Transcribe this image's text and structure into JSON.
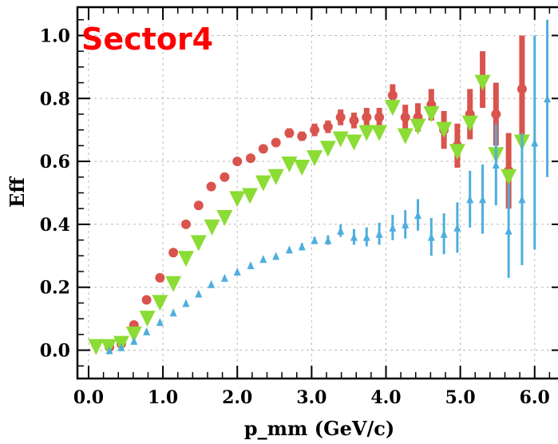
{
  "chart_data": {
    "type": "scatter",
    "title": "Sector4",
    "title_color": "#ff0000",
    "xlabel": "p_mm (GeV/c)",
    "ylabel": "Eff",
    "xlim": [
      -0.15,
      6.4
    ],
    "ylim": [
      -0.09,
      1.09
    ],
    "grid": true,
    "x_ticks": [
      {
        "value": 0.0,
        "label": "0.0"
      },
      {
        "value": 1.0,
        "label": "1.0"
      },
      {
        "value": 2.0,
        "label": "2.0"
      },
      {
        "value": 3.0,
        "label": "3.0"
      },
      {
        "value": 4.0,
        "label": "4.0"
      },
      {
        "value": 5.0,
        "label": "5.0"
      },
      {
        "value": 6.0,
        "label": "6.0"
      }
    ],
    "y_ticks": [
      {
        "value": 0.0,
        "label": "0.0"
      },
      {
        "value": 0.2,
        "label": "0.2"
      },
      {
        "value": 0.4,
        "label": "0.4"
      },
      {
        "value": 0.6,
        "label": "0.6"
      },
      {
        "value": 0.8,
        "label": "0.8"
      },
      {
        "value": 1.0,
        "label": "1.0"
      }
    ],
    "series": [
      {
        "marker": "circle",
        "color": "#d9544d",
        "points": [
          {
            "x": 0.28,
            "y": 0.01,
            "err": 0.01
          },
          {
            "x": 0.44,
            "y": 0.02,
            "err": 0.01
          },
          {
            "x": 0.61,
            "y": 0.08,
            "err": 0.01
          },
          {
            "x": 0.78,
            "y": 0.16,
            "err": 0.01
          },
          {
            "x": 0.96,
            "y": 0.23,
            "err": 0.01
          },
          {
            "x": 1.14,
            "y": 0.31,
            "err": 0.01
          },
          {
            "x": 1.31,
            "y": 0.4,
            "err": 0.01
          },
          {
            "x": 1.48,
            "y": 0.46,
            "err": 0.01
          },
          {
            "x": 1.65,
            "y": 0.52,
            "err": 0.01
          },
          {
            "x": 1.83,
            "y": 0.55,
            "err": 0.01
          },
          {
            "x": 2.0,
            "y": 0.6,
            "err": 0.01
          },
          {
            "x": 2.18,
            "y": 0.61,
            "err": 0.01
          },
          {
            "x": 2.35,
            "y": 0.64,
            "err": 0.01
          },
          {
            "x": 2.52,
            "y": 0.66,
            "err": 0.01
          },
          {
            "x": 2.7,
            "y": 0.69,
            "err": 0.015
          },
          {
            "x": 2.87,
            "y": 0.68,
            "err": 0.015
          },
          {
            "x": 3.04,
            "y": 0.7,
            "err": 0.02
          },
          {
            "x": 3.22,
            "y": 0.71,
            "err": 0.02
          },
          {
            "x": 3.39,
            "y": 0.74,
            "err": 0.025
          },
          {
            "x": 3.57,
            "y": 0.73,
            "err": 0.025
          },
          {
            "x": 3.74,
            "y": 0.74,
            "err": 0.03
          },
          {
            "x": 3.91,
            "y": 0.74,
            "err": 0.03
          },
          {
            "x": 4.09,
            "y": 0.81,
            "err": 0.035
          },
          {
            "x": 4.26,
            "y": 0.74,
            "err": 0.04
          },
          {
            "x": 4.43,
            "y": 0.74,
            "err": 0.045
          },
          {
            "x": 4.61,
            "y": 0.78,
            "err": 0.05
          },
          {
            "x": 4.78,
            "y": 0.7,
            "err": 0.06
          },
          {
            "x": 4.96,
            "y": 0.65,
            "err": 0.07
          },
          {
            "x": 5.13,
            "y": 0.75,
            "err": 0.08
          },
          {
            "x": 5.3,
            "y": 0.86,
            "err": 0.09
          },
          {
            "x": 5.48,
            "y": 0.75,
            "err": 0.1
          },
          {
            "x": 5.65,
            "y": 0.57,
            "err": 0.12
          },
          {
            "x": 5.83,
            "y": 0.83,
            "err": 0.17
          }
        ]
      },
      {
        "marker": "triangle-down",
        "color": "#8bdc34",
        "points": [
          {
            "x": 0.1,
            "y": 0.01,
            "err": 0.0
          },
          {
            "x": 0.27,
            "y": 0.01,
            "err": 0.0
          },
          {
            "x": 0.44,
            "y": 0.02,
            "err": 0.0
          },
          {
            "x": 0.61,
            "y": 0.05,
            "err": 0.0
          },
          {
            "x": 0.79,
            "y": 0.1,
            "err": 0.0
          },
          {
            "x": 0.96,
            "y": 0.15,
            "err": 0.0
          },
          {
            "x": 1.14,
            "y": 0.21,
            "err": 0.0
          },
          {
            "x": 1.31,
            "y": 0.29,
            "err": 0.0
          },
          {
            "x": 1.48,
            "y": 0.34,
            "err": 0.0
          },
          {
            "x": 1.66,
            "y": 0.39,
            "err": 0.0
          },
          {
            "x": 1.83,
            "y": 0.42,
            "err": 0.0
          },
          {
            "x": 2.0,
            "y": 0.48,
            "err": 0.0
          },
          {
            "x": 2.17,
            "y": 0.49,
            "err": 0.0
          },
          {
            "x": 2.35,
            "y": 0.53,
            "err": 0.0
          },
          {
            "x": 2.52,
            "y": 0.55,
            "err": 0.0
          },
          {
            "x": 2.7,
            "y": 0.59,
            "err": 0.0
          },
          {
            "x": 2.87,
            "y": 0.58,
            "err": 0.0
          },
          {
            "x": 3.04,
            "y": 0.61,
            "err": 0.0
          },
          {
            "x": 3.22,
            "y": 0.64,
            "err": 0.0
          },
          {
            "x": 3.39,
            "y": 0.67,
            "err": 0.0
          },
          {
            "x": 3.57,
            "y": 0.66,
            "err": 0.0
          },
          {
            "x": 3.74,
            "y": 0.69,
            "err": 0.0
          },
          {
            "x": 3.91,
            "y": 0.69,
            "err": 0.0
          },
          {
            "x": 4.09,
            "y": 0.77,
            "err": 0.0
          },
          {
            "x": 4.26,
            "y": 0.68,
            "err": 0.0
          },
          {
            "x": 4.43,
            "y": 0.71,
            "err": 0.0
          },
          {
            "x": 4.61,
            "y": 0.75,
            "err": 0.0
          },
          {
            "x": 4.78,
            "y": 0.7,
            "err": 0.0
          },
          {
            "x": 4.96,
            "y": 0.63,
            "err": 0.0
          },
          {
            "x": 5.13,
            "y": 0.72,
            "err": 0.0
          },
          {
            "x": 5.3,
            "y": 0.85,
            "err": 0.0
          },
          {
            "x": 5.48,
            "y": 0.62,
            "err": 0.0
          },
          {
            "x": 5.65,
            "y": 0.55,
            "err": 0.0
          },
          {
            "x": 5.83,
            "y": 0.66,
            "err": 0.0
          }
        ]
      },
      {
        "marker": "triangle-up",
        "color": "#4eaede",
        "points": [
          {
            "x": 0.28,
            "y": 0.0,
            "err": 0.0
          },
          {
            "x": 0.44,
            "y": 0.01,
            "err": 0.0
          },
          {
            "x": 0.61,
            "y": 0.03,
            "err": 0.0
          },
          {
            "x": 0.78,
            "y": 0.06,
            "err": 0.0
          },
          {
            "x": 0.96,
            "y": 0.09,
            "err": 0.0
          },
          {
            "x": 1.14,
            "y": 0.12,
            "err": 0.0
          },
          {
            "x": 1.31,
            "y": 0.15,
            "err": 0.0
          },
          {
            "x": 1.48,
            "y": 0.18,
            "err": 0.0
          },
          {
            "x": 1.65,
            "y": 0.21,
            "err": 0.0
          },
          {
            "x": 1.83,
            "y": 0.23,
            "err": 0.0
          },
          {
            "x": 2.0,
            "y": 0.25,
            "err": 0.0
          },
          {
            "x": 2.18,
            "y": 0.27,
            "err": 0.0
          },
          {
            "x": 2.35,
            "y": 0.29,
            "err": 0.0
          },
          {
            "x": 2.52,
            "y": 0.3,
            "err": 0.0
          },
          {
            "x": 2.7,
            "y": 0.32,
            "err": 0.0
          },
          {
            "x": 2.87,
            "y": 0.33,
            "err": 0.01
          },
          {
            "x": 3.04,
            "y": 0.35,
            "err": 0.01
          },
          {
            "x": 3.22,
            "y": 0.35,
            "err": 0.015
          },
          {
            "x": 3.39,
            "y": 0.38,
            "err": 0.02
          },
          {
            "x": 3.57,
            "y": 0.36,
            "err": 0.025
          },
          {
            "x": 3.74,
            "y": 0.36,
            "err": 0.03
          },
          {
            "x": 3.91,
            "y": 0.37,
            "err": 0.035
          },
          {
            "x": 4.09,
            "y": 0.39,
            "err": 0.04
          },
          {
            "x": 4.26,
            "y": 0.4,
            "err": 0.045
          },
          {
            "x": 4.43,
            "y": 0.43,
            "err": 0.05
          },
          {
            "x": 4.61,
            "y": 0.36,
            "err": 0.06
          },
          {
            "x": 4.78,
            "y": 0.37,
            "err": 0.065
          },
          {
            "x": 4.96,
            "y": 0.39,
            "err": 0.08
          },
          {
            "x": 5.13,
            "y": 0.48,
            "err": 0.09
          },
          {
            "x": 5.3,
            "y": 0.48,
            "err": 0.11
          },
          {
            "x": 5.48,
            "y": 0.59,
            "err": 0.13
          },
          {
            "x": 5.65,
            "y": 0.38,
            "err": 0.15
          },
          {
            "x": 5.83,
            "y": 0.48,
            "err": 0.21
          },
          {
            "x": 6.0,
            "y": 0.66,
            "err": 0.34
          },
          {
            "x": 6.17,
            "y": 0.8,
            "err": 0.25
          }
        ]
      }
    ]
  }
}
